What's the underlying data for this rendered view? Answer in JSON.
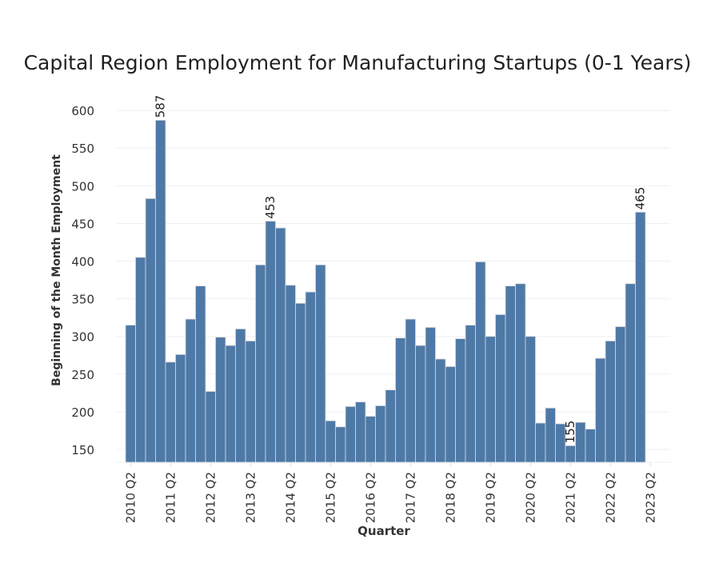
{
  "chart_data": {
    "type": "bar",
    "title": "Capital Region Employment for Manufacturing Startups (0-1 Years)",
    "xlabel": "Quarter",
    "ylabel": "Beginning of the Month Employment",
    "ylim": [
      133,
      625
    ],
    "yticks": [
      150,
      200,
      250,
      300,
      350,
      400,
      450,
      500,
      550,
      600
    ],
    "xtick_labels": [
      "2010 Q2",
      "2011 Q2",
      "2012 Q2",
      "2013 Q2",
      "2014 Q2",
      "2015 Q2",
      "2016 Q2",
      "2017 Q2",
      "2018 Q2",
      "2019 Q2",
      "2020 Q2",
      "2021 Q2",
      "2022 Q2",
      "2023 Q2"
    ],
    "grid": true,
    "bar_color": "#4e79a7",
    "first_quarter": "2010 Q2",
    "values": [
      315,
      405,
      483,
      587,
      266,
      276,
      323,
      367,
      227,
      299,
      288,
      310,
      294,
      395,
      453,
      444,
      368,
      344,
      359,
      395,
      188,
      180,
      207,
      213,
      194,
      208,
      229,
      298,
      323,
      288,
      312,
      270,
      260,
      297,
      315,
      399,
      300,
      329,
      367,
      370,
      300,
      185,
      205,
      184,
      155,
      186,
      177,
      271,
      294,
      313,
      370,
      465
    ],
    "data_labels": [
      {
        "index": 3,
        "text": "587"
      },
      {
        "index": 14,
        "text": "453"
      },
      {
        "index": 44,
        "text": "155"
      },
      {
        "index": 51,
        "text": "465"
      }
    ]
  }
}
